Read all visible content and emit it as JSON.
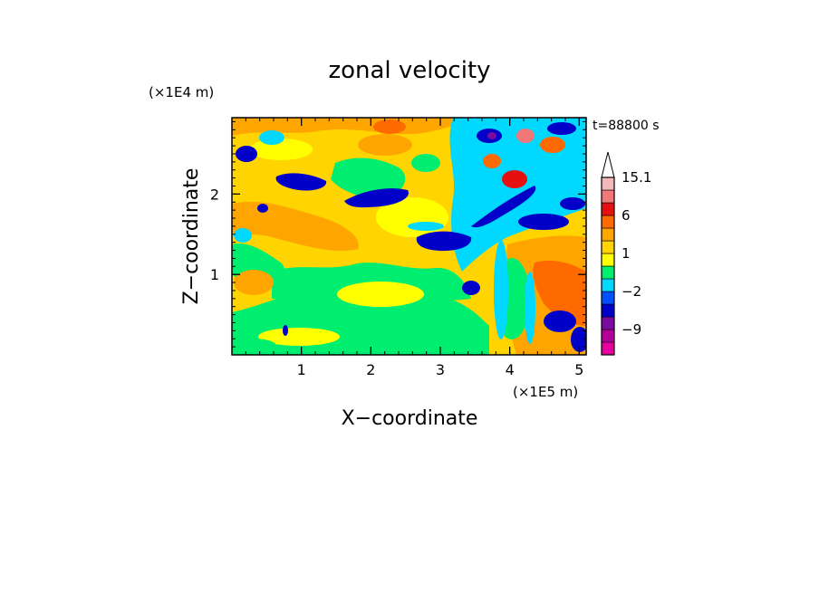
{
  "chart_data": {
    "type": "heatmap",
    "title": "zonal velocity",
    "xlabel": "X−coordinate",
    "ylabel": "Z−coordinate",
    "x_unit": "(×1E5 m)",
    "y_unit": "(×1E4 m)",
    "time_label": "t=88800 s",
    "xlim": [
      0,
      5.1
    ],
    "ylim": [
      0,
      2.95
    ],
    "x_ticks": [
      1,
      2,
      3,
      4,
      5
    ],
    "y_ticks": [
      1,
      2
    ],
    "x_tick_labels": [
      "1",
      "2",
      "3",
      "4",
      "5"
    ],
    "y_tick_labels": [
      "1",
      "2"
    ],
    "colorbar": {
      "levels": [
        -15,
        -12,
        -9,
        -6,
        -4,
        -2,
        -1,
        0,
        1,
        2,
        4,
        6,
        8,
        12,
        15.1
      ],
      "colors": [
        "#e600a0",
        "#b4009a",
        "#7a0aa0",
        "#0000c8",
        "#0050ff",
        "#00d8ff",
        "#00ee70",
        "#ffff00",
        "#ffd400",
        "#ffa500",
        "#ff6a00",
        "#e51010",
        "#f07878",
        "#f5b8b8",
        "#ffffff"
      ],
      "labels": [
        {
          "value": 15.1,
          "text": "15.1"
        },
        {
          "value": 6,
          "text": "6"
        },
        {
          "value": 1,
          "text": "1"
        },
        {
          "value": -2,
          "text": "−2"
        },
        {
          "value": -9,
          "text": "−9"
        }
      ]
    }
  }
}
